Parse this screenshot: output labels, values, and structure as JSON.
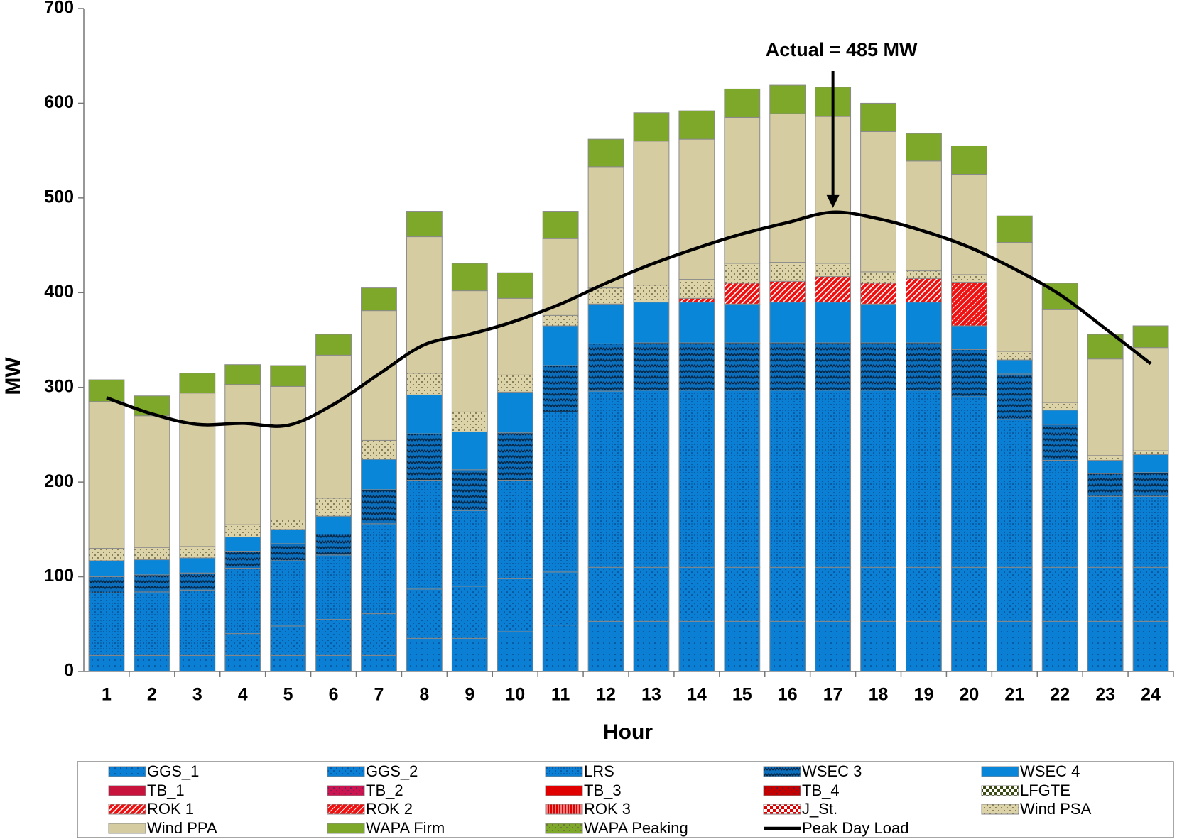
{
  "chart_data": {
    "type": "bar",
    "stacked": true,
    "annotation": "Actual = 485 MW",
    "annotation_at": 16,
    "x_label": "Hour",
    "y_label": "MW",
    "categories": [
      "1",
      "2",
      "3",
      "4",
      "5",
      "6",
      "7",
      "8",
      "9",
      "10",
      "11",
      "12",
      "13",
      "14",
      "15",
      "16",
      "17",
      "18",
      "19",
      "20",
      "21",
      "22",
      "23",
      "24"
    ],
    "ylim": [
      0,
      700
    ],
    "yticks": [
      0,
      100,
      200,
      300,
      400,
      500,
      600,
      700
    ],
    "series": [
      {
        "name": "GGS_1",
        "color": "#0a7fd3",
        "values": [
          17,
          17,
          17,
          17,
          17,
          17,
          17,
          35,
          35,
          42,
          49,
          53,
          53,
          53,
          53,
          53,
          53,
          53,
          53,
          53,
          53,
          53,
          53,
          53
        ]
      },
      {
        "name": "GGS_2",
        "color": "#0a7fd3",
        "values": [
          0,
          0,
          0,
          23,
          31,
          38,
          44,
          52,
          55,
          56,
          56,
          57,
          57,
          57,
          57,
          57,
          57,
          57,
          57,
          57,
          57,
          57,
          57,
          57
        ]
      },
      {
        "name": "LRS",
        "color": "#0a7fd3",
        "values": [
          66,
          67,
          69,
          69,
          69,
          68,
          95,
          115,
          80,
          104,
          169,
          186,
          187,
          187,
          187,
          187,
          187,
          187,
          187,
          180,
          156,
          113,
          75,
          75
        ]
      },
      {
        "name": "WSEC 3",
        "color": "#0b6fbd",
        "values": [
          17,
          18,
          18,
          18,
          18,
          22,
          36,
          49,
          43,
          50,
          49,
          50,
          50,
          50,
          50,
          50,
          50,
          50,
          50,
          50,
          48,
          38,
          24,
          25
        ]
      },
      {
        "name": "WSEC 4",
        "color": "#0a86d8",
        "values": [
          17,
          16,
          16,
          15,
          15,
          19,
          32,
          41,
          40,
          43,
          42,
          42,
          43,
          43,
          41,
          43,
          43,
          41,
          43,
          25,
          15,
          15,
          14,
          19
        ]
      },
      {
        "name": "TB_1",
        "color": "#c8143c",
        "values": [
          0,
          0,
          0,
          0,
          0,
          0,
          0,
          0,
          0,
          0,
          0,
          0,
          0,
          0,
          0,
          0,
          0,
          0,
          0,
          0,
          0,
          0,
          0,
          0
        ]
      },
      {
        "name": "TB_2",
        "color": "#cc1450",
        "values": [
          0,
          0,
          0,
          0,
          0,
          0,
          0,
          0,
          0,
          0,
          0,
          0,
          0,
          0,
          0,
          0,
          0,
          0,
          0,
          0,
          0,
          0,
          0,
          0
        ]
      },
      {
        "name": "TB_3",
        "color": "#e00000",
        "values": [
          0,
          0,
          0,
          0,
          0,
          0,
          0,
          0,
          0,
          0,
          0,
          0,
          0,
          0,
          0,
          0,
          0,
          0,
          0,
          0,
          0,
          0,
          0,
          0
        ]
      },
      {
        "name": "TB_4",
        "color": "#c40000",
        "values": [
          0,
          0,
          0,
          0,
          0,
          0,
          0,
          0,
          0,
          0,
          0,
          0,
          0,
          0,
          0,
          0,
          0,
          0,
          0,
          0,
          0,
          0,
          0,
          0
        ]
      },
      {
        "name": "LFGTE",
        "color": "#3c4a14",
        "values": [
          0,
          0,
          0,
          0,
          0,
          0,
          0,
          0,
          0,
          0,
          0,
          0,
          0,
          0,
          0,
          0,
          0,
          0,
          0,
          0,
          0,
          0,
          0,
          0
        ]
      },
      {
        "name": "ROK 1",
        "color": "#ee1111",
        "values": [
          0,
          0,
          0,
          0,
          0,
          0,
          0,
          0,
          0,
          0,
          0,
          0,
          0,
          4,
          22,
          22,
          27,
          22,
          25,
          0,
          0,
          0,
          0,
          0
        ]
      },
      {
        "name": "ROK 2",
        "color": "#ee1111",
        "values": [
          0,
          0,
          0,
          0,
          0,
          0,
          0,
          0,
          0,
          0,
          0,
          0,
          0,
          0,
          0,
          0,
          0,
          0,
          0,
          46,
          0,
          0,
          0,
          0
        ]
      },
      {
        "name": "ROK 3",
        "color": "#e00000",
        "values": [
          0,
          0,
          0,
          0,
          0,
          0,
          0,
          0,
          0,
          0,
          0,
          0,
          0,
          0,
          0,
          0,
          0,
          0,
          0,
          0,
          0,
          0,
          0,
          0
        ]
      },
      {
        "name": "J_St.",
        "color": "#e00000",
        "values": [
          0,
          0,
          0,
          0,
          0,
          0,
          0,
          0,
          0,
          0,
          0,
          0,
          0,
          0,
          0,
          0,
          0,
          0,
          0,
          0,
          0,
          0,
          0,
          0
        ]
      },
      {
        "name": "Wind PSA",
        "color": "#dcd3a8",
        "values": [
          13,
          13,
          12,
          13,
          10,
          19,
          20,
          23,
          21,
          18,
          11,
          17,
          18,
          20,
          21,
          20,
          14,
          12,
          8,
          8,
          9,
          8,
          5,
          4
        ]
      },
      {
        "name": "Wind PPA",
        "color": "#d6cca2",
        "values": [
          155,
          139,
          162,
          148,
          141,
          151,
          137,
          144,
          128,
          81,
          81,
          128,
          152,
          148,
          154,
          157,
          155,
          148,
          116,
          106,
          115,
          98,
          102,
          109
        ]
      },
      {
        "name": "WAPA Firm",
        "color": "#7ea82a",
        "values": [
          23,
          21,
          21,
          21,
          22,
          22,
          24,
          27,
          29,
          27,
          29,
          29,
          30,
          30,
          30,
          30,
          31,
          30,
          29,
          30,
          28,
          28,
          26,
          23
        ]
      },
      {
        "name": "WAPA Peaking",
        "color": "#7ea82a",
        "values": [
          0,
          0,
          0,
          0,
          0,
          0,
          0,
          0,
          0,
          0,
          0,
          0,
          0,
          0,
          0,
          0,
          0,
          0,
          0,
          0,
          0,
          0,
          0,
          0
        ]
      },
      {
        "name": "Peak Day Load",
        "type": "line",
        "color": "#000000",
        "values": [
          289,
          272,
          261,
          262,
          260,
          282,
          314,
          345,
          356,
          370,
          388,
          410,
          430,
          447,
          462,
          474,
          485,
          478,
          465,
          448,
          425,
          398,
          362,
          325
        ]
      }
    ]
  }
}
